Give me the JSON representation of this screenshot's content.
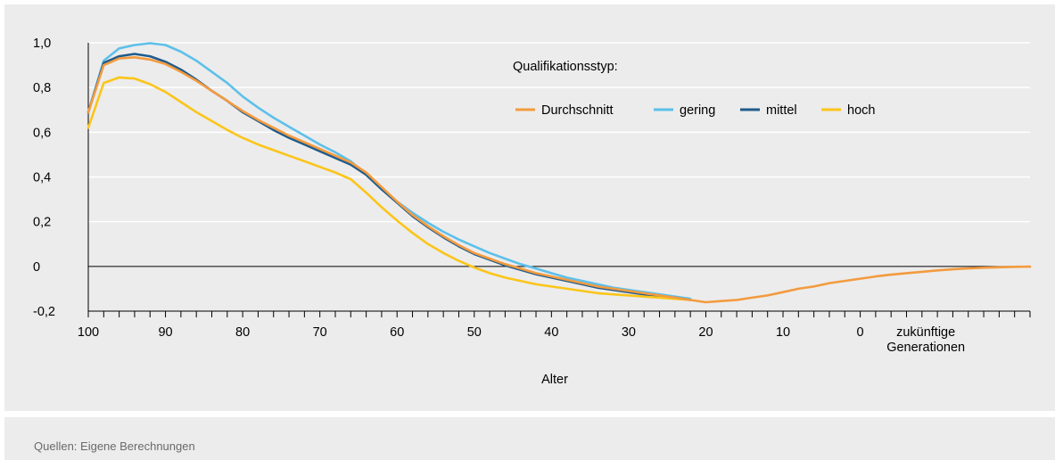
{
  "source": "Quellen: Eigene Berechnungen",
  "colors": {
    "Durchschnitt": "#f39b3f",
    "gering": "#5dc0ea",
    "mittel": "#1f5b8b",
    "hoch": "#fbc51a",
    "grid": "#ffffff",
    "background": "#ececec"
  },
  "chart_data": {
    "type": "line",
    "xlabel": "Alter",
    "ylabel": "",
    "x_direction": "descending",
    "xlim": [
      100,
      -22
    ],
    "ylim": [
      -0.2,
      1.0
    ],
    "y_ticks": [
      "1,0",
      "0,8",
      "0,6",
      "0,4",
      "0,2",
      "0",
      "-0,2"
    ],
    "y_tick_values": [
      1.0,
      0.8,
      0.6,
      0.4,
      0.2,
      0.0,
      -0.2
    ],
    "x_ticks": [
      "100",
      "90",
      "80",
      "70",
      "60",
      "50",
      "40",
      "30",
      "20",
      "10",
      "0"
    ],
    "x_tick_values": [
      100,
      90,
      80,
      70,
      60,
      50,
      40,
      30,
      20,
      10,
      0
    ],
    "x_future_label": [
      "zukünftige",
      "Generationen"
    ],
    "grid": true,
    "legend": {
      "title": "Qualifikationsstyp:",
      "position": "top-right",
      "entries": [
        "Durchschnitt",
        "gering",
        "mittel",
        "hoch"
      ]
    },
    "series": [
      {
        "name": "gering",
        "x": [
          100,
          98,
          96,
          94,
          92,
          90,
          88,
          86,
          84,
          82,
          80,
          78,
          76,
          74,
          72,
          70,
          68,
          66,
          64,
          62,
          60,
          58,
          56,
          54,
          52,
          50,
          48,
          46,
          44,
          42,
          40,
          38,
          36,
          34,
          32,
          30,
          28,
          26,
          24,
          22
        ],
        "y": [
          0.69,
          0.92,
          0.975,
          0.99,
          0.998,
          0.99,
          0.96,
          0.92,
          0.87,
          0.82,
          0.76,
          0.71,
          0.665,
          0.625,
          0.585,
          0.545,
          0.51,
          0.47,
          0.41,
          0.345,
          0.29,
          0.24,
          0.195,
          0.155,
          0.12,
          0.09,
          0.06,
          0.035,
          0.01,
          -0.01,
          -0.03,
          -0.05,
          -0.065,
          -0.08,
          -0.095,
          -0.105,
          -0.115,
          -0.125,
          -0.135,
          -0.145
        ]
      },
      {
        "name": "mittel",
        "x": [
          100,
          98,
          96,
          94,
          92,
          90,
          88,
          86,
          84,
          82,
          80,
          78,
          76,
          74,
          72,
          70,
          68,
          66,
          64,
          62,
          60,
          58,
          56,
          54,
          52,
          50,
          48,
          46,
          44,
          42,
          40,
          38,
          36,
          34,
          32,
          30,
          28,
          26,
          24,
          22
        ],
        "y": [
          0.69,
          0.91,
          0.94,
          0.95,
          0.94,
          0.915,
          0.88,
          0.835,
          0.785,
          0.74,
          0.69,
          0.65,
          0.61,
          0.575,
          0.545,
          0.515,
          0.485,
          0.455,
          0.41,
          0.345,
          0.285,
          0.225,
          0.175,
          0.13,
          0.09,
          0.055,
          0.03,
          0.005,
          -0.015,
          -0.035,
          -0.05,
          -0.065,
          -0.08,
          -0.095,
          -0.105,
          -0.115,
          -0.125,
          -0.135,
          -0.14,
          -0.15
        ]
      },
      {
        "name": "hoch",
        "x": [
          100,
          98,
          96,
          94,
          92,
          90,
          88,
          86,
          84,
          82,
          80,
          78,
          76,
          74,
          72,
          70,
          68,
          66,
          64,
          62,
          60,
          58,
          56,
          54,
          52,
          50,
          48,
          46,
          44,
          42,
          40,
          38,
          36,
          34,
          32,
          30,
          28,
          26,
          24,
          22
        ],
        "y": [
          0.62,
          0.82,
          0.845,
          0.84,
          0.815,
          0.78,
          0.735,
          0.69,
          0.65,
          0.61,
          0.575,
          0.545,
          0.52,
          0.495,
          0.47,
          0.445,
          0.42,
          0.39,
          0.33,
          0.265,
          0.205,
          0.15,
          0.1,
          0.06,
          0.025,
          -0.005,
          -0.03,
          -0.05,
          -0.065,
          -0.08,
          -0.09,
          -0.1,
          -0.11,
          -0.12,
          -0.125,
          -0.13,
          -0.135,
          -0.14,
          -0.145,
          -0.15
        ]
      },
      {
        "name": "Durchschnitt",
        "x": [
          100,
          98,
          96,
          94,
          92,
          90,
          88,
          86,
          84,
          82,
          80,
          78,
          76,
          74,
          72,
          70,
          68,
          66,
          64,
          62,
          60,
          58,
          56,
          54,
          52,
          50,
          48,
          46,
          44,
          42,
          40,
          38,
          36,
          34,
          32,
          30,
          28,
          26,
          24,
          22,
          20,
          18,
          16,
          14,
          12,
          10,
          8,
          6,
          4,
          2,
          0,
          -2,
          -4,
          -6,
          -8,
          -10,
          -12,
          -14,
          -16,
          -18,
          -20,
          -22
        ],
        "y": [
          0.69,
          0.9,
          0.93,
          0.935,
          0.925,
          0.905,
          0.87,
          0.83,
          0.785,
          0.74,
          0.695,
          0.655,
          0.62,
          0.585,
          0.555,
          0.525,
          0.495,
          0.465,
          0.42,
          0.355,
          0.29,
          0.23,
          0.18,
          0.135,
          0.095,
          0.06,
          0.035,
          0.01,
          -0.01,
          -0.03,
          -0.045,
          -0.06,
          -0.075,
          -0.09,
          -0.1,
          -0.11,
          -0.12,
          -0.13,
          -0.14,
          -0.15,
          -0.16,
          -0.155,
          -0.15,
          -0.14,
          -0.13,
          -0.115,
          -0.1,
          -0.09,
          -0.075,
          -0.065,
          -0.055,
          -0.045,
          -0.037,
          -0.03,
          -0.024,
          -0.018,
          -0.013,
          -0.009,
          -0.006,
          -0.004,
          -0.002,
          -0.001
        ]
      }
    ]
  }
}
